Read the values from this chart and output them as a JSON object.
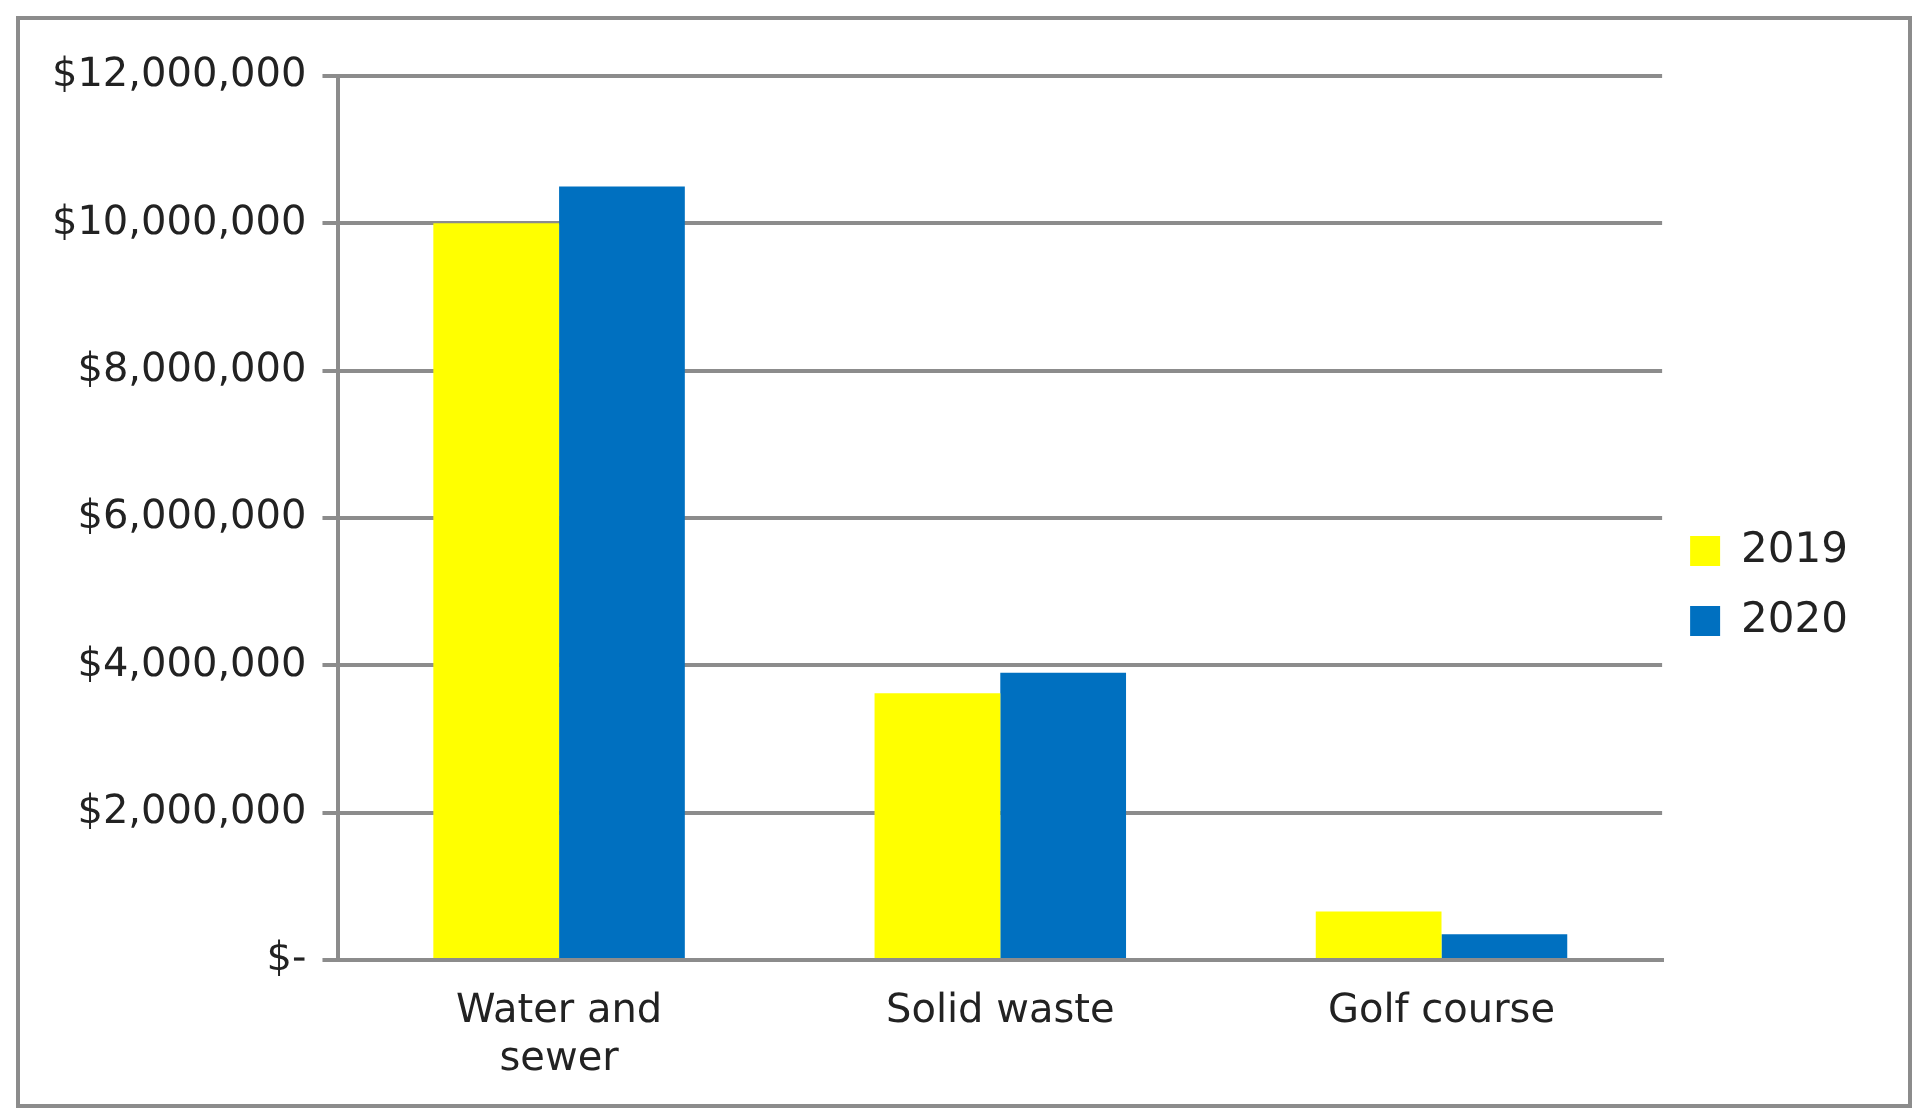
{
  "chart_data": {
    "type": "bar",
    "categories": [
      "Water and sewer",
      "Solid waste",
      "Golf course"
    ],
    "series": [
      {
        "name": "2019",
        "color": "#ffff00",
        "values": [
          10000000,
          3620000,
          660000
        ]
      },
      {
        "name": "2020",
        "color": "#0070c0",
        "values": [
          10500000,
          3900000,
          350000
        ]
      }
    ],
    "ylim": [
      0,
      12000000
    ],
    "yticks": [
      {
        "value": 0,
        "label": "$-"
      },
      {
        "value": 2000000,
        "label": "$2,000,000"
      },
      {
        "value": 4000000,
        "label": "$4,000,000"
      },
      {
        "value": 6000000,
        "label": "$6,000,000"
      },
      {
        "value": 8000000,
        "label": "$8,000,000"
      },
      {
        "value": 10000000,
        "label": "$10,000,000"
      },
      {
        "value": 12000000,
        "label": "$12,000,000"
      }
    ],
    "grid": "y",
    "legend": "right"
  }
}
